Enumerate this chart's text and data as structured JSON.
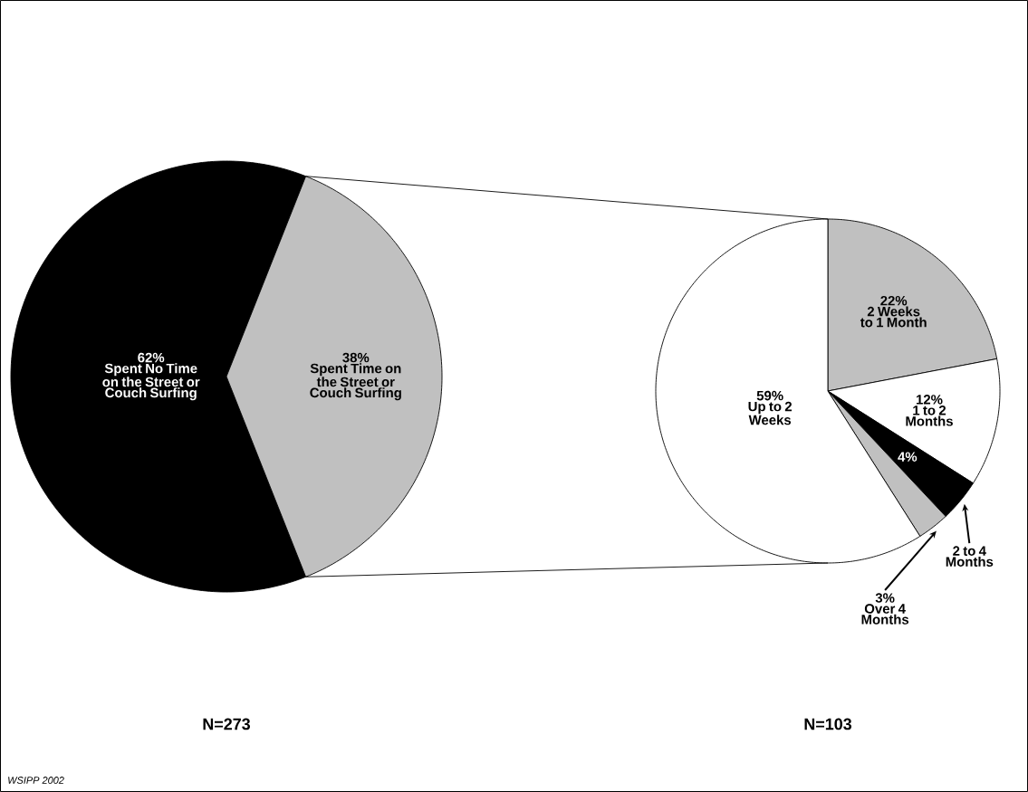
{
  "chart_data": [
    {
      "type": "pie",
      "categories": [
        "Spent No Time on the Street or Couch Surfing",
        "Spent Time on the Street or Couch Surfing"
      ],
      "values": [
        62,
        38
      ],
      "colors": [
        "#000000",
        "#c0c0c0"
      ],
      "value_labels": [
        "62%",
        "38%"
      ],
      "annotations": [
        "N=273",
        "WSIPP 2002"
      ]
    },
    {
      "type": "pie",
      "categories": [
        "2 Weeks to 1 Month",
        "1 to 2 Months",
        "2 to 4 Months",
        "Over 4 Months",
        "Up to 2 Weeks"
      ],
      "values": [
        22,
        12,
        4,
        3,
        59
      ],
      "colors": [
        "#c0c0c0",
        "#ffffff",
        "#000000",
        "#c0c0c0",
        "#ffffff"
      ],
      "value_labels": [
        "22%",
        "12%",
        "4%",
        "3%",
        "59%"
      ],
      "annotations": [
        "N=103"
      ]
    }
  ]
}
